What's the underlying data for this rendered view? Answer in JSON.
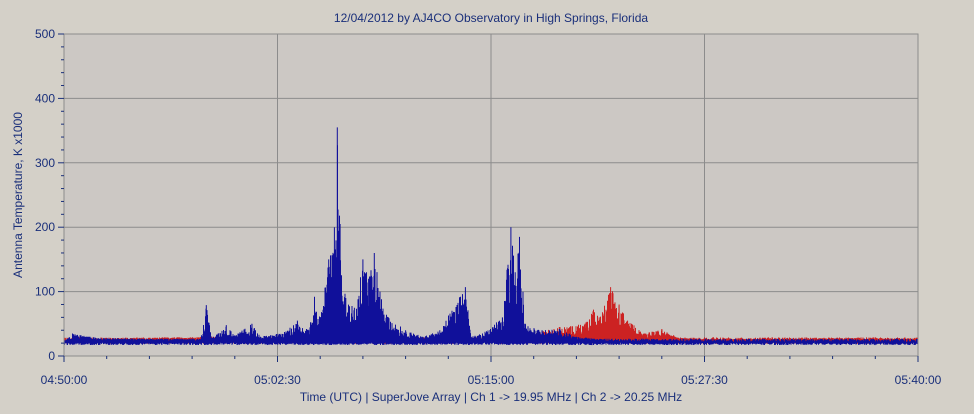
{
  "chart_data": {
    "type": "line",
    "title": "12/04/2012  by  AJ4CO Observatory  in  High Springs, Florida",
    "xlabel": "Time (UTC)  |  SuperJove Array  |  Ch 1 -> 19.95 MHz  |  Ch 2 -> 20.25 MHz",
    "ylabel": "Antenna Temperature, K x1000",
    "x_ticks": [
      "04:50:00",
      "05:02:30",
      "05:15:00",
      "05:27:30",
      "05:40:00"
    ],
    "y_ticks": [
      0,
      100,
      200,
      300,
      400,
      500
    ],
    "xlim": [
      "04:50:00",
      "05:40:00"
    ],
    "ylim": [
      0,
      500
    ],
    "grid": true,
    "colors": {
      "background": "#d4d0c8",
      "plot": "#ccc8c4",
      "grid": "#8c8c8c",
      "text": "#1a2f7a"
    },
    "series": [
      {
        "color": "#cc2222",
        "baseline": 24,
        "points": [
          [
            "04:50:00",
            24
          ],
          [
            "04:54:00",
            28
          ],
          [
            "04:58:40",
            30
          ],
          [
            "05:02:30",
            24
          ],
          [
            "05:04:30",
            32
          ],
          [
            "05:05:00",
            45
          ],
          [
            "05:06:00",
            30
          ],
          [
            "05:07:00",
            38
          ],
          [
            "05:10:00",
            26
          ],
          [
            "05:14:30",
            26
          ],
          [
            "05:16:30",
            28
          ],
          [
            "05:18:00",
            38
          ],
          [
            "05:19:00",
            45
          ],
          [
            "05:20:30",
            50
          ],
          [
            "05:21:00",
            72
          ],
          [
            "05:21:20",
            60
          ],
          [
            "05:22:00",
            107
          ],
          [
            "05:22:30",
            80
          ],
          [
            "05:23:00",
            55
          ],
          [
            "05:24:00",
            35
          ],
          [
            "05:25:00",
            42
          ],
          [
            "05:26:00",
            28
          ],
          [
            "05:30:00",
            26
          ],
          [
            "05:35:00",
            28
          ],
          [
            "05:40:00",
            27
          ]
        ]
      },
      {
        "color": "#10109a",
        "baseline": 22,
        "points": [
          [
            "04:50:00",
            22
          ],
          [
            "04:50:30",
            35
          ],
          [
            "04:52:00",
            28
          ],
          [
            "04:58:00",
            26
          ],
          [
            "04:58:20",
            79
          ],
          [
            "04:58:40",
            28
          ],
          [
            "04:59:30",
            48
          ],
          [
            "05:00:00",
            32
          ],
          [
            "05:01:00",
            50
          ],
          [
            "05:01:30",
            30
          ],
          [
            "05:03:00",
            38
          ],
          [
            "05:03:40",
            55
          ],
          [
            "05:04:20",
            40
          ],
          [
            "05:04:40",
            92
          ],
          [
            "05:05:00",
            60
          ],
          [
            "05:05:30",
            150
          ],
          [
            "05:05:50",
            200
          ],
          [
            "05:06:00",
            355
          ],
          [
            "05:06:10",
            205
          ],
          [
            "05:06:30",
            90
          ],
          [
            "05:07:00",
            75
          ],
          [
            "05:07:30",
            150
          ],
          [
            "05:07:50",
            120
          ],
          [
            "05:08:10",
            160
          ],
          [
            "05:08:30",
            100
          ],
          [
            "05:09:00",
            60
          ],
          [
            "05:10:00",
            40
          ],
          [
            "05:11:00",
            30
          ],
          [
            "05:12:00",
            40
          ],
          [
            "05:13:30",
            107
          ],
          [
            "05:13:50",
            30
          ],
          [
            "05:14:30",
            35
          ],
          [
            "05:15:40",
            60
          ],
          [
            "05:16:10",
            200
          ],
          [
            "05:16:25",
            130
          ],
          [
            "05:16:40",
            185
          ],
          [
            "05:17:00",
            50
          ],
          [
            "05:18:00",
            40
          ],
          [
            "05:19:00",
            42
          ],
          [
            "05:20:00",
            30
          ],
          [
            "05:22:00",
            25
          ],
          [
            "05:30:00",
            22
          ],
          [
            "05:35:00",
            23
          ],
          [
            "05:40:00",
            22
          ]
        ]
      }
    ]
  }
}
